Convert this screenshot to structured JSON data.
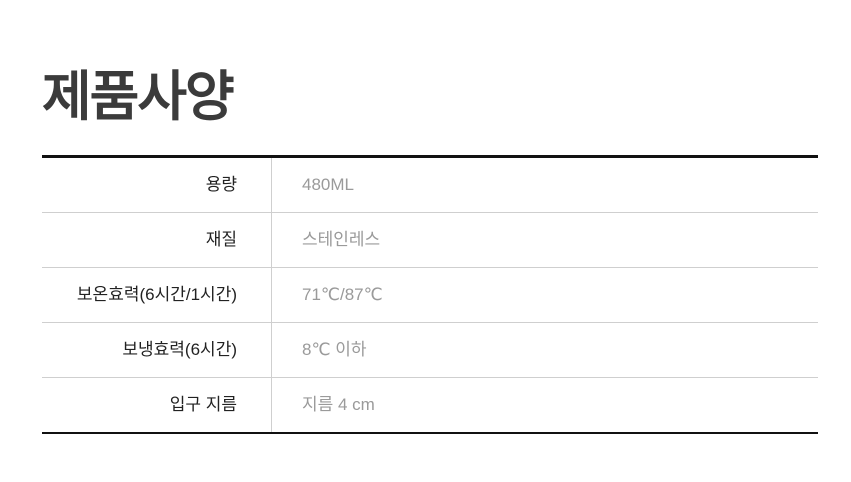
{
  "title": "제품사양",
  "specs": [
    {
      "label": "용량",
      "value": "480ML"
    },
    {
      "label": "재질",
      "value": "스테인레스"
    },
    {
      "label": "보온효력(6시간/1시간)",
      "value": "71℃/87℃"
    },
    {
      "label": "보냉효력(6시간)",
      "value": "8℃ 이하"
    },
    {
      "label": "입구 지름",
      "value": "지름 4 cm"
    }
  ]
}
